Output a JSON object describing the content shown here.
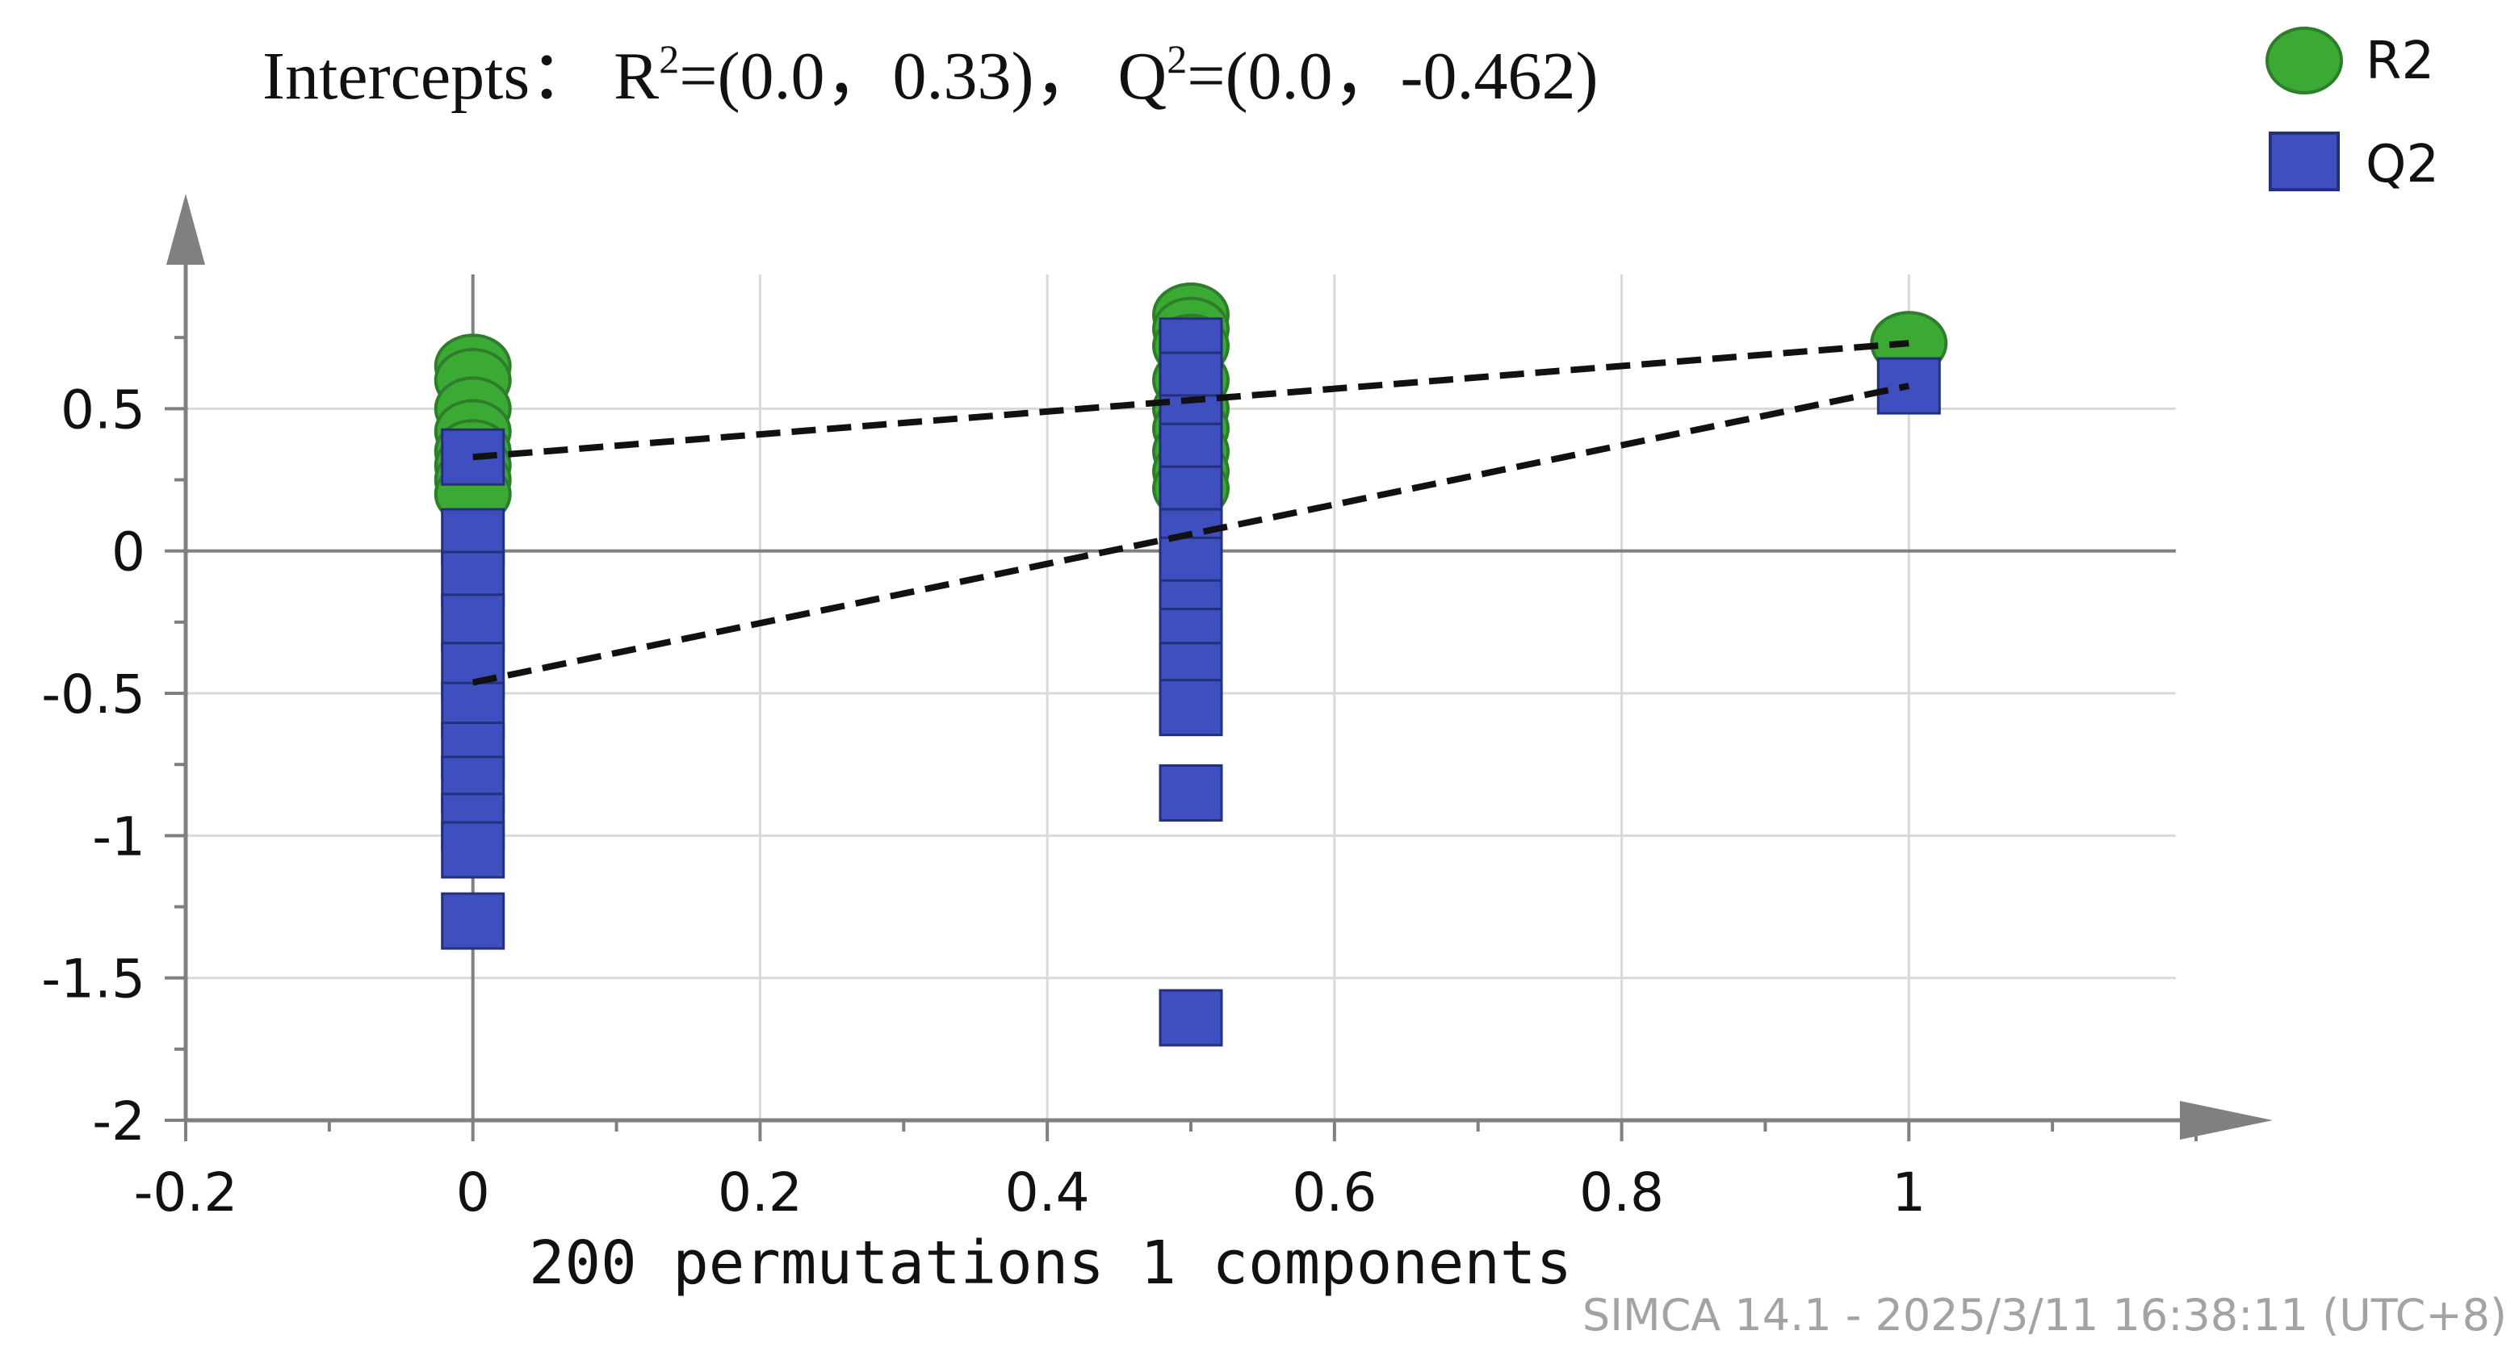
{
  "chart_data": {
    "type": "scatter",
    "title": {
      "prefix": "Intercepts：",
      "r_label": "R",
      "r_sup": "2",
      "r_values": "=(0.0，0.33)，",
      "q_label": "Q",
      "q_sup": "2",
      "q_values": "=(0.0，-0.462)"
    },
    "xlabel": "200 permutations 1 components",
    "ylabel": "",
    "footer": "SIMCA 14.1 - 2025/3/11 16:38:11 (UTC+8)",
    "xlim": [
      -0.2,
      1.2
    ],
    "ylim": [
      -2,
      1.0
    ],
    "x_ticks": [
      -0.2,
      0,
      0.2,
      0.4,
      0.6,
      0.8,
      1
    ],
    "x_tick_labels": [
      "-0.2",
      "0",
      "0.2",
      "0.4",
      "0.6",
      "0.8",
      "1"
    ],
    "y_ticks": [
      -2,
      -1.5,
      -1,
      -0.5,
      0,
      0.5
    ],
    "y_tick_labels": [
      "-2",
      "-1.5",
      "-1",
      "-0.5",
      "0",
      "0.5"
    ],
    "grid": true,
    "legend_position": "top-right",
    "colors": {
      "r2_fill": "#3aaa35",
      "r2_stroke": "#2e7d2a",
      "q2_fill": "#3f4fbf",
      "q2_stroke": "#24307a",
      "axis": "#808080",
      "grid": "#d9d9d9",
      "regression": "#111111"
    },
    "series": [
      {
        "name": "R2",
        "marker": "circle",
        "points": [
          {
            "x": 0,
            "y": 0.65
          },
          {
            "x": 0,
            "y": 0.6
          },
          {
            "x": 0,
            "y": 0.5
          },
          {
            "x": 0,
            "y": 0.42
          },
          {
            "x": 0,
            "y": 0.35
          },
          {
            "x": 0,
            "y": 0.3
          },
          {
            "x": 0,
            "y": 0.25
          },
          {
            "x": 0,
            "y": 0.2
          },
          {
            "x": 0.5,
            "y": 0.83
          },
          {
            "x": 0.5,
            "y": 0.78
          },
          {
            "x": 0.5,
            "y": 0.72
          },
          {
            "x": 0.5,
            "y": 0.6
          },
          {
            "x": 0.5,
            "y": 0.5
          },
          {
            "x": 0.5,
            "y": 0.43
          },
          {
            "x": 0.5,
            "y": 0.35
          },
          {
            "x": 0.5,
            "y": 0.28
          },
          {
            "x": 0.5,
            "y": 0.22
          },
          {
            "x": 1,
            "y": 0.73
          }
        ]
      },
      {
        "name": "Q2",
        "marker": "square",
        "points": [
          {
            "x": 0,
            "y": 0.33
          },
          {
            "x": 0,
            "y": 0.05
          },
          {
            "x": 0,
            "y": -0.1
          },
          {
            "x": 0,
            "y": -0.25
          },
          {
            "x": 0,
            "y": -0.42
          },
          {
            "x": 0,
            "y": -0.56
          },
          {
            "x": 0,
            "y": -0.7
          },
          {
            "x": 0,
            "y": -0.82
          },
          {
            "x": 0,
            "y": -0.95
          },
          {
            "x": 0,
            "y": -1.05
          },
          {
            "x": 0,
            "y": -1.3
          },
          {
            "x": 0.5,
            "y": 0.72
          },
          {
            "x": 0.5,
            "y": 0.6
          },
          {
            "x": 0.5,
            "y": 0.45
          },
          {
            "x": 0.5,
            "y": 0.35
          },
          {
            "x": 0.5,
            "y": 0.2
          },
          {
            "x": 0.5,
            "y": 0.05
          },
          {
            "x": 0.5,
            "y": -0.05
          },
          {
            "x": 0.5,
            "y": -0.2
          },
          {
            "x": 0.5,
            "y": -0.3
          },
          {
            "x": 0.5,
            "y": -0.42
          },
          {
            "x": 0.5,
            "y": -0.55
          },
          {
            "x": 0.5,
            "y": -0.85
          },
          {
            "x": 0.5,
            "y": -1.64
          },
          {
            "x": 1,
            "y": 0.58
          }
        ]
      }
    ],
    "regression_lines": [
      {
        "series": "R2",
        "x": [
          0,
          1
        ],
        "y": [
          0.33,
          0.73
        ]
      },
      {
        "series": "Q2",
        "x": [
          0,
          1
        ],
        "y": [
          -0.462,
          0.58
        ]
      }
    ]
  }
}
